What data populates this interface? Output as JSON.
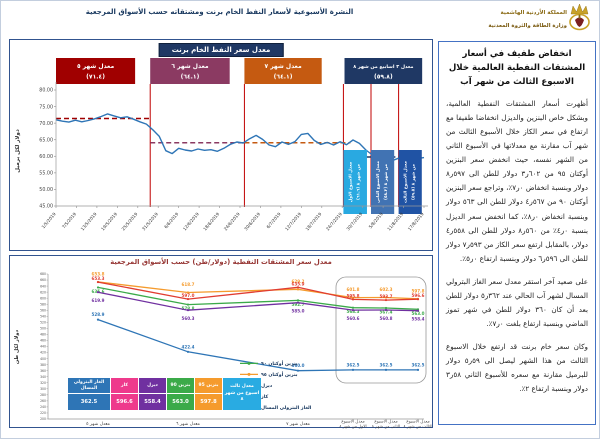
{
  "header": {
    "title": "النشرة الأسبوعية  لأسعار النفط الخام برنت ومشتقاته حسب الأسواق المرجعية",
    "logo": {
      "line1": "المملكة الأردنية الهاشمية",
      "line2": "وزارة الطاقة والثروة المعدنية"
    }
  },
  "article": {
    "title": "انخفاض طفيف في أسعار المشتقات النفطية العالمية خلال الاسبوع الثالث من شهر آب",
    "paragraphs": [
      "أظهرت أسعار المشتقات النفطية العالمية، وبشكل خاص البنزين والديزل انخفاضا طفيفا مع ارتفاع في سعر الكاز خلال الأسبوع الثالث من شهر آب مقارنة مع معدلاتها في الأسبوع الثاني من الشهر نفسه، حيث انخفض سعر البنزين أوكتان ٩٥ من ٦٠٢ر٣ دولار للطن الى ٥٩٧ر٨ دولار وبنسبة انخفاض ٠ر٧٪، وتراجع سعر البنزين أوكتان ٩٠ من ٥٦٧ر٤ دولار للطن الى ٥٦٣ دولار وبنسبة انخفاض ٠ر٨٪، كما انخفض سعر الديزل بنسبة ٠ر٤٪ من ٥٦٠ر٨ دولار للطن الى ٥٥٨ر٤ دولار، بالمقابل ارتفع سعر الكاز من ٥٩٣ر٧ دولار للطن الى ٥٩٦ر٦ دولار وبنسبة ارتفاع ٠ر٥٪.",
      "على صعيد آخر استقر معدل سعر الغاز البترولي المسال لشهر آب الحالي عند ٣٦٢ر٥ دولار للطن بعد أن كان ٣٦٠ دولار للطن في شهر تموز الماضي وبنسبة ارتفاع بلغت ٠ر٧٪.",
      "وكان سعر خام برنت قد ارتفع خلال الاسبوع الثالث من هذا الشهر ليصل الى ٥٩ر٥ دولار للبرميل مقارنة مع سعره للأسبوع الثاني ٥٨ر٣ دولار وبنسبة ارتفاع ٢٪."
    ]
  },
  "summary_table": {
    "row_label": "معدل ثالث اسبوع من شهر ٨",
    "label_color": "#29ABE2",
    "columns": [
      {
        "header": "بنزين 95",
        "value": "597.8",
        "color": "#F59B2D"
      },
      {
        "header": "بنزين 90",
        "value": "563.0",
        "color": "#3BAA49"
      },
      {
        "header": "ديزل",
        "value": "558.4",
        "color": "#7030A0"
      },
      {
        "header": "كاز",
        "value": "596.6",
        "color": "#EE3A8C"
      },
      {
        "header": "الغاز البترولي المسال",
        "value": "362.5",
        "color": "#2E75B6"
      }
    ]
  },
  "chart_data": [
    {
      "type": "line",
      "title": "معدل سعر النفط الخام  برنت",
      "ylabel": "دولار لكل برميل",
      "ylim": [
        45,
        80
      ],
      "ytick_step": 5,
      "x_ticks": [
        "1/5/2019",
        "7/5/2019",
        "13/5/2019",
        "19/5/2019",
        "25/5/2019",
        "31/5/2019",
        "6/6/2019",
        "12/6/2019",
        "18/6/2019",
        "24/6/2019",
        "30/6/2019",
        "6/7/2019",
        "12/7/2019",
        "18/7/2019",
        "24/7/2019",
        "30/7/2019",
        "5/8/2019",
        "11/8/2019",
        "17/8/2019"
      ],
      "series": [
        {
          "name": "سعر خام برنت اليومي",
          "color": "#2E75B6",
          "values": [
            71.0,
            70.6,
            70.3,
            70.9,
            70.4,
            70.8,
            71.3,
            72.0,
            72.8,
            72.2,
            71.6,
            71.9,
            71.2,
            70.4,
            69.7,
            68.0,
            66.0,
            61.7,
            60.8,
            62.4,
            61.9,
            61.6,
            62.2,
            61.8,
            62.0,
            61.5,
            62.4,
            63.6,
            64.3,
            64.0,
            65.3,
            66.3,
            65.1,
            63.4,
            62.9,
            64.3,
            63.6,
            64.4,
            66.6,
            66.9,
            64.8,
            63.6,
            64.2,
            63.4,
            64.4,
            63.5,
            64.9,
            63.9,
            61.9,
            60.4,
            56.9,
            57.8,
            58.6,
            59.4,
            58.2,
            58.9,
            59.3,
            59.6
          ]
        }
      ],
      "month_averages": [
        {
          "label": "معدل شهر ٥",
          "display": "(٧١.٤)",
          "value": 71.4,
          "color": "#A00000",
          "box": [
            0.0,
            0.215
          ],
          "line": [
            0.0,
            0.256
          ]
        },
        {
          "label": "معدل شهر ٦",
          "display": "(٦٤.١)",
          "value": 64.1,
          "color": "#8B3A62",
          "box": [
            0.256,
            0.472
          ],
          "line": [
            0.256,
            0.512
          ]
        },
        {
          "label": "معدل شهر ٧",
          "display": "(٦٤.١)",
          "value": 64.1,
          "color": "#C55A11",
          "box": [
            0.512,
            0.722
          ],
          "line": [
            0.512,
            0.8
          ]
        },
        {
          "label": "معدل ٣ اسابيع من شهر ٨",
          "display": "(٥٩.٨)",
          "value": 59.8,
          "color": "#1F3864",
          "box": [
            0.784,
            0.995
          ],
          "line": [
            0.8,
            0.99
          ]
        }
      ],
      "week_boxes": [
        {
          "line1": "معدل الاسبوع الاول",
          "line2": "من شهر ٨ (٦١.٦)",
          "value": 61.6,
          "color": "#29A9E1",
          "box": [
            0.781,
            0.845
          ]
        },
        {
          "line1": "معدل الاسبوع الثاني",
          "line2": "من شهر ٨ (٥٨.٣)",
          "value": 58.3,
          "color": "#4173B3",
          "box": [
            0.856,
            0.919
          ]
        },
        {
          "line1": "معدل الاسبوع الثالث",
          "line2": "من شهر ٨ (٥٩.٥)",
          "value": 59.5,
          "color": "#2053A4",
          "box": [
            0.931,
            0.994
          ]
        }
      ],
      "red_vlines": [
        0.256,
        0.512,
        0.781,
        0.856,
        0.931
      ]
    },
    {
      "type": "line",
      "title": "معدل سعر المشتقات النفطية (دولار/طن) حسب الأسواق المرجعية",
      "ylabel": "دولار لكل طن",
      "ylim": [
        200,
        680
      ],
      "ytick_step": 20,
      "categories": [
        "معدل شهر ٥",
        "معدل شهر ٦",
        "معدل شهر ٧",
        "معدل الاسبوع الاول من شهر ٨",
        "معدل الاسبوع الثاني من شهر ٨",
        "معدل الاسبوع الثالث من شهر ٨"
      ],
      "series": [
        {
          "name": "بنزين أوكتان ٩٥",
          "color": "#F59B2D",
          "values": [
            653.8,
            618.7,
            629.2,
            601.8,
            602.3,
            597.8
          ]
        },
        {
          "name": "كاز",
          "color": "#E03C31",
          "values": [
            653.3,
            597.0,
            635.9,
            595.8,
            593.7,
            596.6
          ]
        },
        {
          "name": "بنزين أوكتان ٩٠",
          "color": "#3BAA49",
          "values": [
            635.6,
            578.8,
            592.7,
            568.3,
            567.4,
            563.0
          ]
        },
        {
          "name": "ديزل",
          "color": "#7030A0",
          "values": [
            619.9,
            560.3,
            585.0,
            560.6,
            560.8,
            558.4
          ]
        },
        {
          "name": "الغاز البترولي المسال",
          "color": "#2E75B6",
          "values": [
            528.9,
            422.4,
            360.0,
            362.5,
            362.5,
            362.5
          ]
        }
      ],
      "legend": [
        "بنزين أوكتان ٩٠",
        "بنزين أوكتان ٩٥",
        "ديزل",
        "كاز",
        "الغاز البترولي المسال"
      ],
      "legend_position": "center-right",
      "grid": false
    }
  ]
}
